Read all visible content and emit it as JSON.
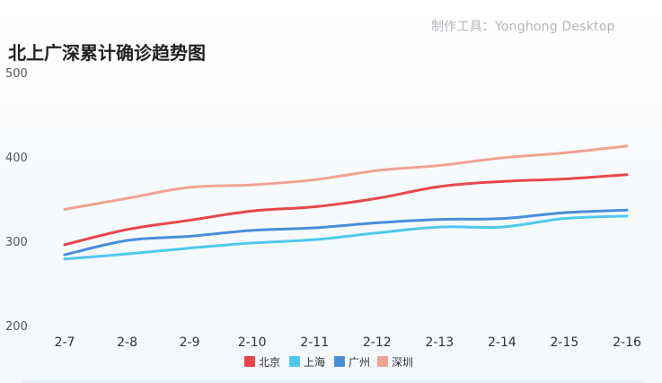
{
  "watermark": "制作工具：Yonghong Desktop",
  "chart_data": {
    "type": "line",
    "title": "北上广深累计确诊趋势图",
    "xlabel": "",
    "ylabel": "",
    "x": [
      "2-7",
      "2-8",
      "2-9",
      "2-10",
      "2-11",
      "2-12",
      "2-13",
      "2-14",
      "2-15",
      "2-16"
    ],
    "ylim": [
      200,
      500
    ],
    "yticks": [
      200,
      300,
      400,
      500
    ],
    "grid": false,
    "legend_position": "bottom",
    "series": [
      {
        "name": "北京",
        "color": "#e8474a",
        "values": [
          297,
          315,
          326,
          337,
          342,
          352,
          366,
          372,
          375,
          380
        ]
      },
      {
        "name": "上海",
        "color": "#4fc8ee",
        "values": [
          280,
          286,
          293,
          299,
          303,
          311,
          318,
          318,
          328,
          331
        ]
      },
      {
        "name": "广州",
        "color": "#4a8edc",
        "values": [
          285,
          302,
          307,
          314,
          317,
          323,
          327,
          328,
          335,
          338
        ]
      },
      {
        "name": "深圳",
        "color": "#f0a392",
        "values": [
          339,
          352,
          365,
          368,
          374,
          385,
          391,
          400,
          406,
          414
        ]
      }
    ]
  }
}
